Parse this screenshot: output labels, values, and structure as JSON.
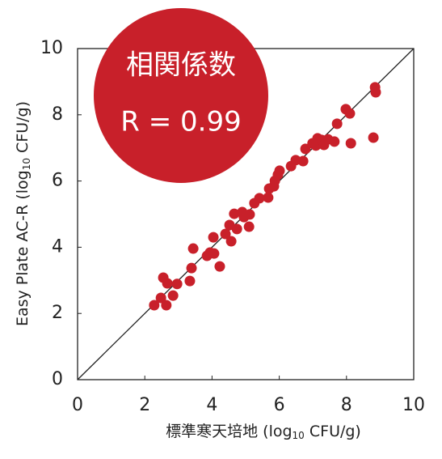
{
  "chart_data": {
    "type": "scatter",
    "annotation": {
      "title": "相関係数",
      "text": "R = 0.99"
    },
    "x_label": [
      "標準寒天培地 (log",
      "10",
      " CFU/g)"
    ],
    "y_label": [
      "Easy Plate AC-R (log",
      "10",
      " CFU/g)"
    ],
    "color": "#c8202a",
    "identity_line": true,
    "x": [
      2.28,
      2.48,
      2.55,
      2.64,
      2.67,
      2.84,
      2.96,
      3.34,
      3.39,
      3.44,
      3.85,
      3.94,
      4.04,
      4.06,
      4.23,
      4.4,
      4.57,
      4.52,
      4.66,
      4.74,
      4.9,
      4.95,
      5.1,
      5.12,
      5.26,
      5.41,
      5.67,
      5.7,
      5.84,
      5.87,
      5.96,
      6.01,
      6.35,
      6.49,
      6.71,
      6.78,
      6.99,
      7.09,
      7.14,
      7.26,
      7.33,
      7.45,
      7.64,
      7.72,
      7.98,
      8.1,
      8.13,
      8.8,
      8.85,
      8.87
    ],
    "values": [
      2.25,
      2.47,
      3.08,
      2.25,
      2.91,
      2.54,
      2.89,
      2.98,
      3.37,
      3.96,
      3.74,
      3.84,
      4.3,
      3.81,
      3.42,
      4.4,
      4.18,
      4.67,
      5.01,
      4.55,
      5.06,
      4.91,
      4.62,
      4.99,
      5.33,
      5.48,
      5.5,
      5.77,
      5.84,
      6.01,
      6.19,
      6.31,
      6.45,
      6.63,
      6.6,
      6.97,
      7.14,
      7.07,
      7.29,
      7.24,
      7.09,
      7.26,
      7.19,
      7.73,
      8.17,
      8.04,
      7.14,
      7.31,
      8.83,
      8.68
    ],
    "xlim": [
      0,
      10
    ],
    "ylim": [
      0,
      10
    ],
    "xticks": [
      0,
      2,
      4,
      6,
      8,
      10
    ],
    "yticks": [
      0,
      2,
      4,
      6,
      8,
      10
    ]
  }
}
